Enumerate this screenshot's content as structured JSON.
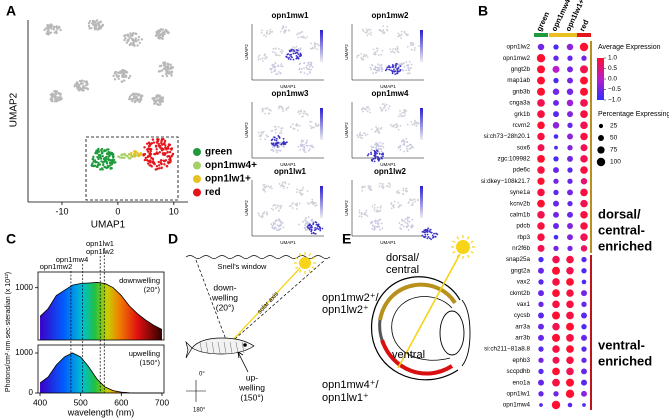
{
  "panel_labels": [
    "A",
    "B",
    "C",
    "D",
    "E"
  ],
  "panel_a": {
    "x_label": "UMAP1",
    "y_label": "UMAP2",
    "xlim": [
      -15,
      12
    ],
    "xticks": [
      -10,
      0,
      10
    ],
    "legend": [
      {
        "name": "green",
        "color": "#1f9a3c"
      },
      {
        "name": "opn1mw4+",
        "color": "#a6cf6a"
      },
      {
        "name": "opn1lw1+",
        "color": "#e8c020"
      },
      {
        "name": "red",
        "color": "#e4161b"
      }
    ],
    "feature_plots": [
      "opn1mw1",
      "opn1mw2",
      "opn1mw3",
      "opn1mw4",
      "opn1lw1",
      "opn1lw2"
    ]
  },
  "panel_b": {
    "groups": [
      "green",
      "opn1mw4+",
      "opn1lw1+",
      "red"
    ],
    "group_colors": [
      "#1f9a3c",
      "#e8c020",
      "#e8c020",
      "#e4161b"
    ],
    "genes": [
      "opn1lw2",
      "opn1mw2",
      "gngt2b",
      "map1ab",
      "gnb3b",
      "cnga3a",
      "grk1b",
      "rcvrn2",
      "si:ch73−28h20.1",
      "sox6",
      "zgc:109982",
      "pde6c",
      "si:dkey−108k21.7",
      "syne1a",
      "kcnv2b",
      "calm1b",
      "pdcb",
      "rbp3",
      "nr2f6b",
      "snap25a",
      "gngt2a",
      "vax2",
      "ckmt2b",
      "vax1",
      "cycsb",
      "arr3a",
      "arr3b",
      "si:ch211−81a8.8",
      "ephb3",
      "sccpdhb",
      "eno1a",
      "opn1lw1",
      "opn1mw4"
    ],
    "expression": [
      [
        -0.5,
        -0.8,
        -0.3,
        1.2
      ],
      [
        1.2,
        -0.6,
        -0.6,
        -0.5
      ],
      [
        1.0,
        0.0,
        -0.5,
        0.8
      ],
      [
        1.0,
        -0.8,
        -0.5,
        1.0
      ],
      [
        1.0,
        -0.5,
        -0.5,
        1.0
      ],
      [
        0.8,
        -0.6,
        -0.2,
        0.8
      ],
      [
        0.9,
        -0.7,
        -0.4,
        0.9
      ],
      [
        1.0,
        -0.3,
        -0.6,
        0.8
      ],
      [
        0.9,
        -0.8,
        -0.3,
        0.9
      ],
      [
        0.8,
        -0.8,
        -0.4,
        0.8
      ],
      [
        1.0,
        -0.8,
        -0.5,
        0.8
      ],
      [
        0.9,
        -0.6,
        -0.7,
        0.9
      ],
      [
        1.0,
        -0.5,
        -0.6,
        0.6
      ],
      [
        0.9,
        -0.7,
        -0.5,
        0.9
      ],
      [
        1.0,
        -0.6,
        -0.6,
        0.8
      ],
      [
        0.8,
        -0.5,
        -0.6,
        0.9
      ],
      [
        0.9,
        -0.6,
        -0.4,
        0.9
      ],
      [
        0.9,
        -0.8,
        -0.4,
        0.8
      ],
      [
        0.8,
        -0.5,
        -0.5,
        0.7
      ],
      [
        -0.8,
        0.8,
        0.9,
        -0.7
      ],
      [
        -0.6,
        1.0,
        0.8,
        -0.8
      ],
      [
        -0.7,
        0.9,
        1.0,
        -0.8
      ],
      [
        -0.6,
        1.0,
        0.9,
        -0.5
      ],
      [
        -0.6,
        0.9,
        0.9,
        -0.6
      ],
      [
        -0.7,
        1.0,
        0.9,
        -0.7
      ],
      [
        -0.6,
        0.8,
        1.0,
        -0.8
      ],
      [
        -0.6,
        1.0,
        0.9,
        -0.6
      ],
      [
        -0.7,
        0.9,
        1.0,
        -0.7
      ],
      [
        -0.5,
        0.8,
        0.9,
        -0.6
      ],
      [
        -0.7,
        1.0,
        0.8,
        -0.6
      ],
      [
        -0.6,
        0.9,
        1.0,
        -0.7
      ],
      [
        -0.6,
        -0.5,
        1.2,
        -0.3
      ],
      [
        -0.7,
        1.2,
        -0.7,
        -0.7
      ]
    ],
    "pct": [
      [
        60,
        40,
        60,
        100
      ],
      [
        100,
        40,
        40,
        40
      ],
      [
        90,
        70,
        50,
        90
      ],
      [
        90,
        40,
        50,
        90
      ],
      [
        90,
        60,
        60,
        90
      ],
      [
        85,
        50,
        60,
        85
      ],
      [
        85,
        50,
        50,
        85
      ],
      [
        80,
        60,
        40,
        80
      ],
      [
        80,
        30,
        50,
        80
      ],
      [
        70,
        20,
        40,
        70
      ],
      [
        85,
        40,
        50,
        80
      ],
      [
        80,
        50,
        40,
        80
      ],
      [
        75,
        40,
        40,
        60
      ],
      [
        80,
        40,
        50,
        80
      ],
      [
        85,
        50,
        40,
        80
      ],
      [
        80,
        50,
        50,
        80
      ],
      [
        80,
        50,
        50,
        80
      ],
      [
        80,
        30,
        50,
        80
      ],
      [
        70,
        40,
        40,
        60
      ],
      [
        40,
        80,
        80,
        40
      ],
      [
        50,
        90,
        80,
        40
      ],
      [
        40,
        80,
        85,
        30
      ],
      [
        50,
        85,
        80,
        50
      ],
      [
        40,
        80,
        80,
        40
      ],
      [
        50,
        90,
        85,
        50
      ],
      [
        50,
        80,
        90,
        40
      ],
      [
        50,
        90,
        85,
        50
      ],
      [
        40,
        80,
        85,
        40
      ],
      [
        40,
        70,
        80,
        40
      ],
      [
        40,
        85,
        80,
        50
      ],
      [
        50,
        85,
        90,
        50
      ],
      [
        40,
        40,
        100,
        50
      ],
      [
        20,
        100,
        30,
        20
      ]
    ],
    "expression_title": "Average Expression",
    "expression_colors": [
      "#2f2fff",
      "#b81ccc",
      "#ff1030"
    ],
    "expression_ticks": [
      {
        "value": 1,
        "label": "1.0"
      },
      0.5,
      {
        "value": 0,
        "label": "0.0"
      },
      {
        "value": -0.5,
        "label": "−0.5"
      },
      {
        "value": -1,
        "label": "−1.0"
      }
    ],
    "pct_title": "Percentage Expressing",
    "pct_ticks": [
      25,
      50,
      75,
      100
    ],
    "dorsal_label": [
      "dorsal/",
      "central-",
      "enriched"
    ],
    "dorsal_color": "#b8901c",
    "ventral_label": [
      "ventral-",
      "enriched"
    ],
    "ventral_color": "#c0141c"
  },
  "panel_c": {
    "y_label": "Photons/cm²·nm·sec·steradian (x 10¹²)",
    "x_label": "wavelength (nm)",
    "xlim": [
      395,
      705
    ],
    "xticks": [
      400,
      500,
      600,
      700
    ],
    "opsins": [
      {
        "name": "opn1lw1",
        "peak": 558
      },
      {
        "name": "opn1lw2",
        "peak": 548
      },
      {
        "name": "opn1mw4",
        "peak": 505
      },
      {
        "name": "opn1mw2",
        "peak": 476
      }
    ],
    "downwelling": {
      "label": [
        "downwelling",
        "(20°)"
      ],
      "ylim": [
        0,
        1300
      ],
      "yticks": [
        1000
      ],
      "x": [
        400,
        420,
        440,
        460,
        480,
        500,
        520,
        540,
        560,
        580,
        600,
        620,
        640,
        660,
        680,
        700
      ],
      "y": [
        450,
        600,
        850,
        950,
        1050,
        1080,
        1090,
        1100,
        1080,
        1000,
        850,
        650,
        500,
        380,
        280,
        200
      ]
    },
    "upwelling": {
      "label": [
        "upwelling",
        "(150°)"
      ],
      "ylim": [
        0,
        1200
      ],
      "yticks": [
        0,
        1000
      ],
      "x": [
        400,
        420,
        440,
        460,
        480,
        500,
        520,
        540,
        560,
        580,
        600,
        620,
        640,
        660,
        680,
        700
      ],
      "y": [
        250,
        400,
        700,
        900,
        1000,
        900,
        650,
        350,
        150,
        60,
        20,
        5,
        0,
        0,
        0,
        0
      ]
    }
  },
  "panel_d": {
    "snell": "Snell's window",
    "down": [
      "down-",
      "welling",
      "(20°)"
    ],
    "up": [
      "up-",
      "welling",
      "(150°)"
    ],
    "solar": "solar axis",
    "angle_0": "0°",
    "angle_180": "180°"
  },
  "panel_e": {
    "dorsal": [
      "dorsal/",
      "central"
    ],
    "dorsal_opsins": [
      "opn1mw2⁺/",
      "opn1lw2⁺"
    ],
    "ventral": "ventral",
    "ventral_opsins": [
      "opn1mw4⁺/",
      "opn1lw1⁺"
    ]
  }
}
